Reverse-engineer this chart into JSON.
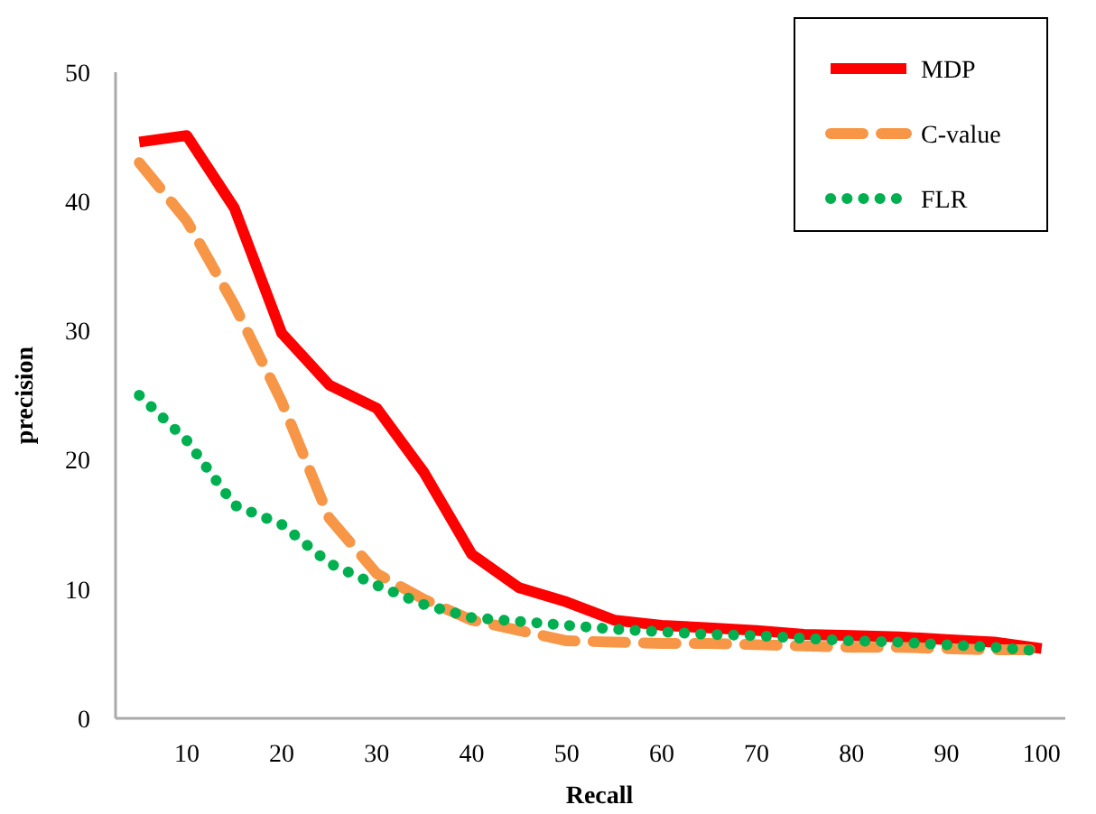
{
  "chart_data": {
    "type": "line",
    "xlabel": "Recall",
    "ylabel": "precision",
    "x": [
      5,
      10,
      15,
      20,
      25,
      30,
      35,
      40,
      45,
      50,
      55,
      60,
      65,
      70,
      75,
      80,
      85,
      90,
      95,
      100
    ],
    "xlim": [
      2.5,
      102.5
    ],
    "xticks": [
      10,
      20,
      30,
      40,
      50,
      60,
      70,
      80,
      90,
      100
    ],
    "ylim": [
      0,
      50
    ],
    "yticks": [
      0,
      10,
      20,
      30,
      40,
      50
    ],
    "grid": false,
    "legend": "top right",
    "marker": "none",
    "series": [
      {
        "name": "MDP",
        "color": "#ff0000",
        "line_style": "solid",
        "values": [
          44.6,
          45.1,
          39.5,
          29.8,
          25.8,
          24,
          19,
          12.7,
          10.1,
          9,
          7.6,
          7.2,
          7,
          6.8,
          6.5,
          6.4,
          6.3,
          6.1,
          5.9,
          5.4
        ]
      },
      {
        "name": "C-value",
        "color": "#f79646",
        "line_style": "dashed",
        "values": [
          43,
          38.5,
          32,
          24.5,
          15.5,
          11.2,
          9.2,
          7.6,
          6.8,
          6,
          5.9,
          5.8,
          5.8,
          5.7,
          5.6,
          5.5,
          5.5,
          5.4,
          5.3,
          5.3
        ]
      },
      {
        "name": "FLR",
        "color": "#00b050",
        "line_style": "dotted",
        "values": [
          25,
          21.5,
          16.5,
          15,
          12,
          10.3,
          8.8,
          7.8,
          7.5,
          7.2,
          6.9,
          6.7,
          6.5,
          6.4,
          6.2,
          6,
          5.9,
          5.7,
          5.5,
          5.2
        ]
      }
    ]
  }
}
